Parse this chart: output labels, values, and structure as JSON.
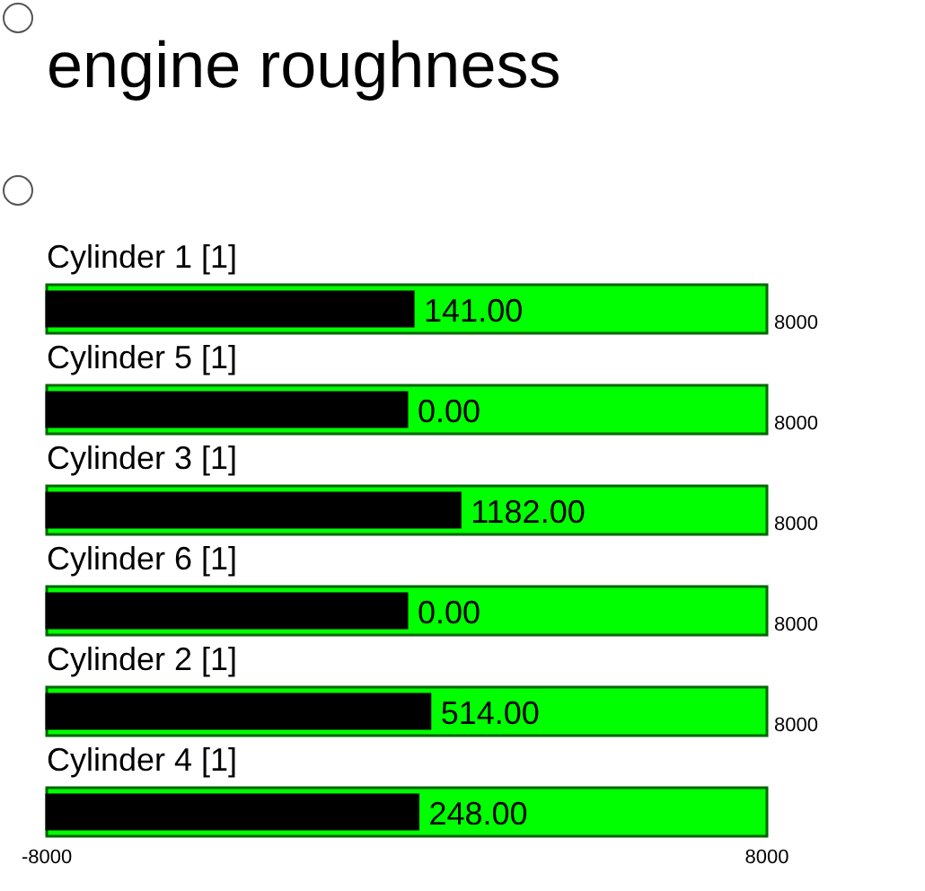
{
  "chart_data": {
    "type": "bar",
    "title": "engine roughness",
    "orientation": "horizontal",
    "categories": [
      "Cylinder 1 [1]",
      "Cylinder 5 [1]",
      "Cylinder 3 [1]",
      "Cylinder 6 [1]",
      "Cylinder 2 [1]",
      "Cylinder 4 [1]"
    ],
    "xlim": [
      -8000,
      8000
    ],
    "xticks": [
      -8000,
      8000
    ],
    "series": [
      {
        "color": "#00ff00",
        "base": [
          -8000,
          -8000,
          -8000,
          -8000,
          -8000,
          -8000
        ],
        "values": [
          16000,
          16000,
          16000,
          16000,
          16000,
          16000
        ],
        "value_labels": [
          "8000",
          "8000",
          "8000",
          "8000",
          "8000",
          null
        ]
      },
      {
        "color": "#000000",
        "base": [
          -8000,
          -8000,
          -8000,
          -8000,
          -8000,
          -8000
        ],
        "values": [
          8141,
          8000,
          9182,
          8000,
          8514,
          8248
        ],
        "value_labels": [
          "141.00",
          "0.00",
          "1182.00",
          "0.00",
          "514.00",
          "248.00"
        ]
      }
    ]
  }
}
